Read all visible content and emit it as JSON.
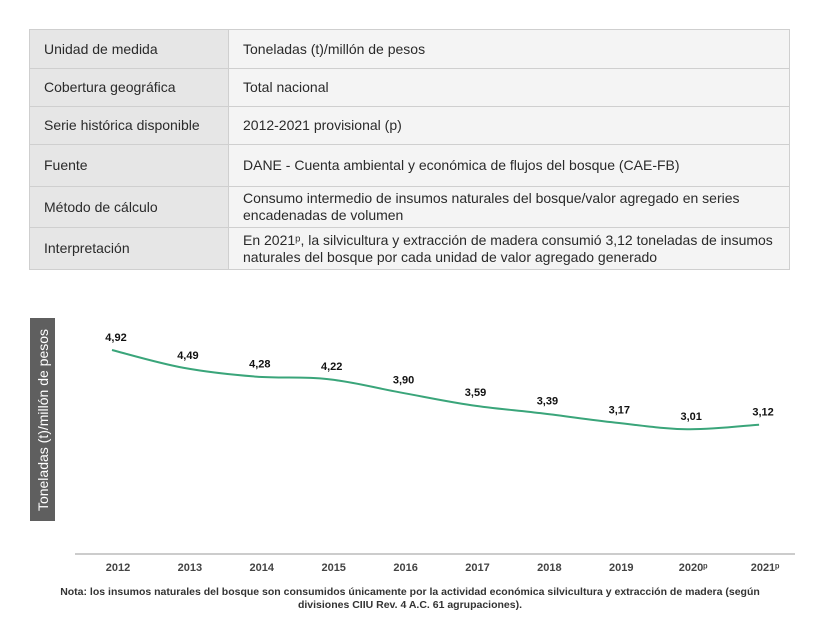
{
  "table": {
    "rows": [
      {
        "key": "Unidad de medida",
        "value": "Toneladas (t)/millón de pesos"
      },
      {
        "key": "Cobertura geográfica",
        "value": "Total nacional"
      },
      {
        "key": "Serie histórica disponible",
        "value": "2012-2021 provisional (p)"
      },
      {
        "key": "Fuente",
        "value": "DANE - Cuenta ambiental y económica de flujos del bosque (CAE-FB)"
      },
      {
        "key": "Método de cálculo",
        "value": "Consumo intermedio de insumos naturales del bosque/valor agregado en series encadenadas de volumen"
      },
      {
        "key": "Interpretación",
        "value": "En 2021ᵖ, la silvicultura y extracción de madera consumió 3,12 toneladas de insumos naturales del bosque por cada unidad de valor agregado generado"
      }
    ]
  },
  "chart_data": {
    "type": "line",
    "ylabel": "Toneladas (t)/millón de pesos",
    "categories": [
      "2012",
      "2013",
      "2014",
      "2015",
      "2016",
      "2017",
      "2018",
      "2019",
      "2020ᵖ",
      "2021ᵖ"
    ],
    "series": [
      {
        "values": [
          4.92,
          4.49,
          4.28,
          4.22,
          3.9,
          3.59,
          3.39,
          3.17,
          3.01,
          3.12
        ]
      }
    ],
    "data_labels": [
      "4,92",
      "4,49",
      "4,28",
      "4,22",
      "3,90",
      "3,59",
      "3,39",
      "3,17",
      "3,01",
      "3,12"
    ],
    "line_color": "#3aa57a",
    "ylim": [
      0,
      5.5
    ],
    "grid": false
  },
  "note": "Nota: los insumos naturales del bosque son consumidos únicamente por la actividad económica silvicultura y extracción de madera (según divisiones CIIU Rev. 4 A.C. 61 agrupaciones)."
}
